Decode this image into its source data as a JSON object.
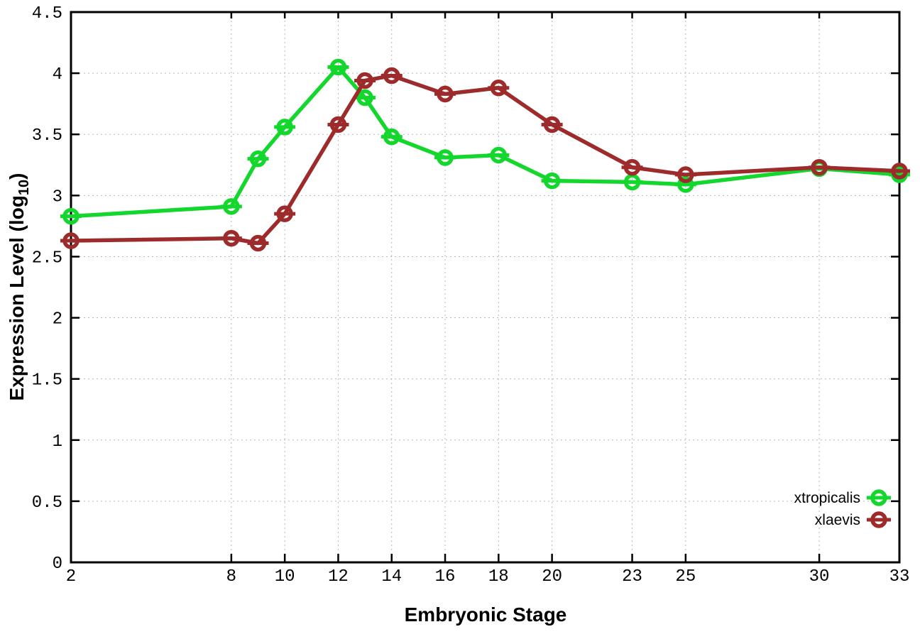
{
  "chart_data": {
    "type": "line",
    "title": "",
    "xlabel": "Embryonic Stage",
    "ylabel": "Expression Level (log10)",
    "ylabel_parts": {
      "prefix": "Expression Level (log",
      "sub": "10",
      "suffix": ")"
    },
    "xlim": [
      2,
      33
    ],
    "ylim": [
      0,
      4.5
    ],
    "x_ticks": [
      2,
      8,
      10,
      12,
      14,
      16,
      18,
      20,
      23,
      25,
      30,
      33
    ],
    "y_ticks": [
      0,
      0.5,
      1,
      1.5,
      2,
      2.5,
      3,
      3.5,
      4,
      4.5
    ],
    "grid": true,
    "grid_color": "#b8b8b8",
    "background_color": "#ffffff",
    "border_color": "#000000",
    "legend_position": "bottom-right-inside",
    "marker": "open-circle-with-horizontal-error-bar",
    "series": [
      {
        "name": "xtropicalis",
        "color": "#14d72d",
        "x": [
          2,
          8,
          9,
          10,
          12,
          13,
          14,
          16,
          18,
          20,
          23,
          25,
          30,
          33
        ],
        "y": [
          2.83,
          2.91,
          3.3,
          3.56,
          4.05,
          3.8,
          3.48,
          3.31,
          3.33,
          3.12,
          3.11,
          3.09,
          3.22,
          3.17
        ]
      },
      {
        "name": "xlaevis",
        "color": "#9e2b2b",
        "x": [
          2,
          8,
          9,
          10,
          12,
          13,
          14,
          16,
          18,
          20,
          23,
          25,
          30,
          33
        ],
        "y": [
          2.63,
          2.65,
          2.61,
          2.85,
          3.58,
          3.94,
          3.98,
          3.83,
          3.88,
          3.58,
          3.23,
          3.17,
          3.23,
          3.2
        ]
      }
    ]
  }
}
